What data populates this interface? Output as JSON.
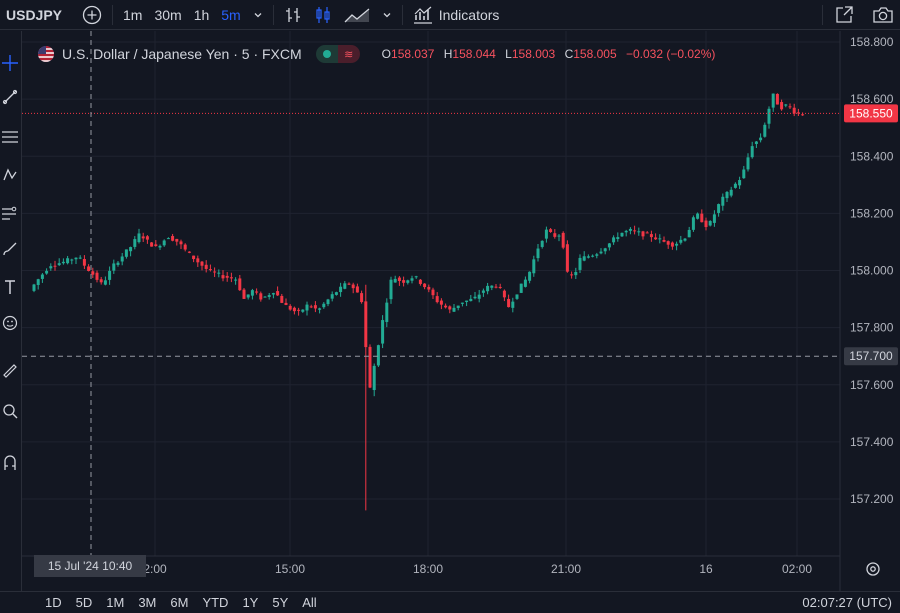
{
  "toolbar": {
    "symbol": "USDJPY",
    "intervals": [
      "1m",
      "30m",
      "1h",
      "5m"
    ],
    "active_interval": "5m",
    "indicators_label": "Indicators"
  },
  "legend": {
    "title": "U.S. Dollar / Japanese Yen · 5 · FXCM",
    "open_key": "O",
    "open": "158.037",
    "high_key": "H",
    "high": "158.044",
    "low_key": "L",
    "low": "158.003",
    "close_key": "C",
    "close": "158.005",
    "change": "−0.032 (−0.02%)"
  },
  "price_axis": {
    "ticks": [
      "158.800",
      "158.600",
      "158.400",
      "158.200",
      "158.000",
      "157.800",
      "157.600",
      "157.400",
      "157.200"
    ],
    "current_price": "158.550",
    "crosshair_price": "157.700",
    "colors": {
      "current": "#f23645",
      "crosshair": "#363a45"
    }
  },
  "time_axis": {
    "ticks": [
      "2:00",
      "15:00",
      "18:00",
      "21:00",
      "16",
      "02:00"
    ],
    "crosshair_time": "15 Jul '24   10:40"
  },
  "bottom": {
    "ranges": [
      "1D",
      "5D",
      "1M",
      "3M",
      "6M",
      "YTD",
      "1Y",
      "5Y",
      "All"
    ],
    "clock": "02:07:27 (UTC)"
  },
  "colors": {
    "up": "#22ab94",
    "down": "#f23645",
    "background": "#131722",
    "grid": "#1f2330"
  }
}
